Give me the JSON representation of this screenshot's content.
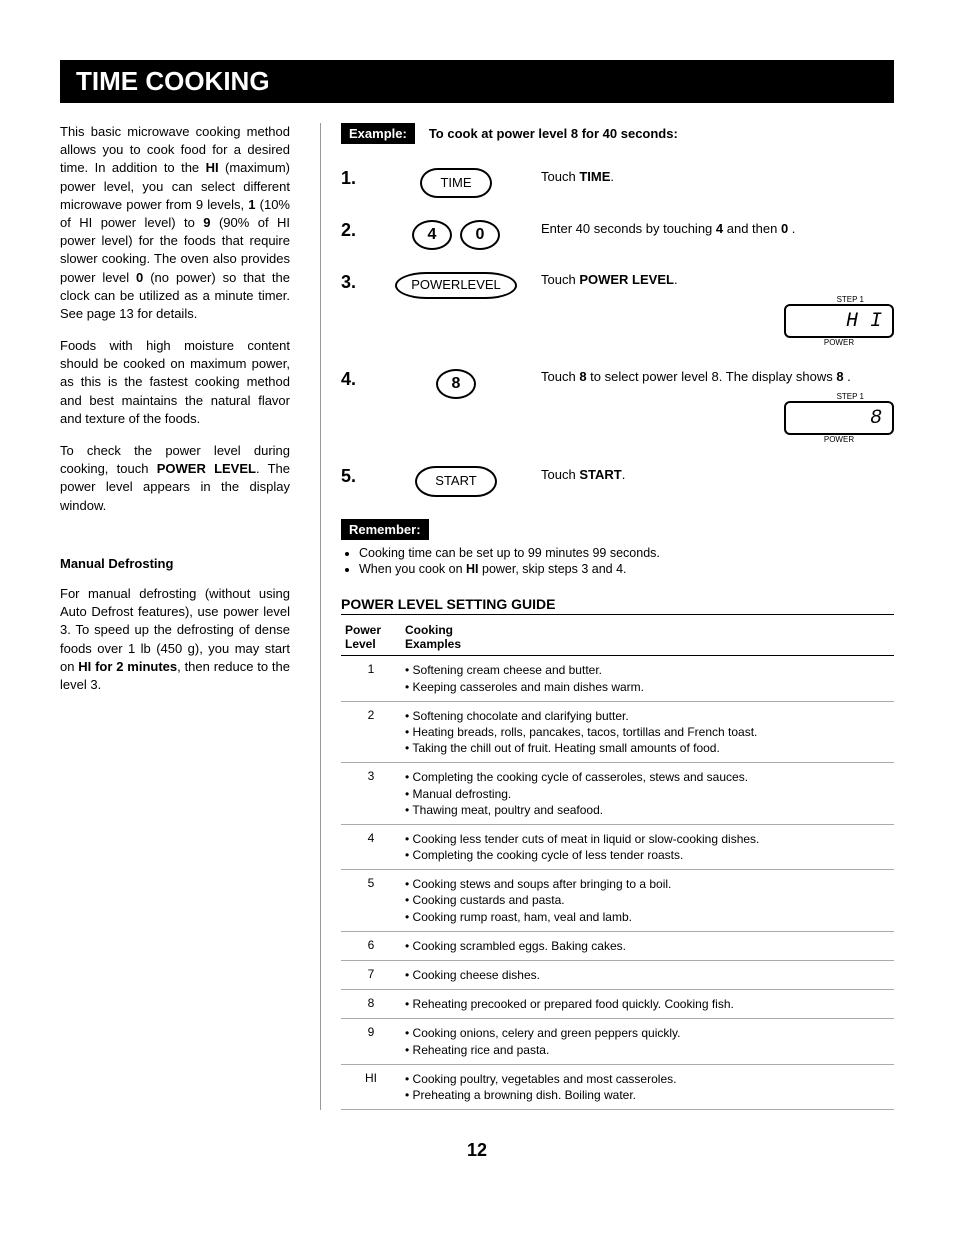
{
  "title": "TIME COOKING",
  "page_number": "12",
  "left": {
    "p1_a": "This basic microwave cooking method allows you to cook food for a desired time. In addition to the ",
    "p1_b": "HI",
    "p1_c": " (maximum) power level, you can select different microwave power from 9 levels, ",
    "p1_d": "1",
    "p1_e": " (10% of HI power level) to ",
    "p1_f": "9",
    "p1_g": " (90% of HI power level) for the foods that require slower cooking. The oven also provides power level ",
    "p1_h": "0",
    "p1_i": " (no power) so that the clock can be utilized as a minute timer. See page 13 for details.",
    "p2": "Foods with high moisture content should be cooked on maximum power, as this is the fastest cooking method and best maintains the natural flavor and texture of the foods.",
    "p3_a": "To check the power level during cooking, touch ",
    "p3_b": "POWER LEVEL",
    "p3_c": ". The power level appears in the display window.",
    "sub_head": "Manual Defrosting",
    "p4_a": "For manual defrosting (without using Auto Defrost features), use power level 3. To speed up the defrosting of dense foods over 1 lb (450 g), you may start on ",
    "p4_b": "HI for 2 minutes",
    "p4_c": ", then reduce to the level 3."
  },
  "example": {
    "label": "Example:",
    "text": "To cook at power level 8 for 40 seconds:",
    "steps": [
      {
        "num": "1.",
        "buttons": [
          "TIME"
        ],
        "desc_parts": [
          "Touch ",
          "TIME",
          "."
        ]
      },
      {
        "num": "2.",
        "round_buttons": [
          "4",
          "0"
        ],
        "desc_parts": [
          "Enter 40 seconds by touching ",
          "4",
          " and then ",
          "0",
          " ."
        ]
      },
      {
        "num": "3.",
        "buttons_multi": [
          "POWER",
          "LEVEL"
        ],
        "desc_parts": [
          "Touch ",
          "POWER LEVEL",
          "."
        ],
        "display": "H I",
        "display_top": "STEP 1",
        "display_caption": "POWER"
      },
      {
        "num": "4.",
        "round_buttons": [
          "8"
        ],
        "desc_parts": [
          "Touch ",
          "8",
          " to select power level 8. The display shows ",
          "8",
          " ."
        ],
        "display": "8",
        "display_top": "STEP 1",
        "display_caption": "POWER"
      },
      {
        "num": "5.",
        "buttons": [
          "START"
        ],
        "desc_parts": [
          "Touch ",
          "START",
          "."
        ]
      }
    ]
  },
  "remember": {
    "label": "Remember:",
    "items": [
      "Cooking time can be set up to 99 minutes 99 seconds.",
      "When you cook on HI power, skip steps 3 and 4."
    ],
    "item2_a": "When you cook on ",
    "item2_b": "HI",
    "item2_c": " power, skip steps 3 and 4."
  },
  "guide": {
    "heading": "POWER LEVEL SETTING GUIDE",
    "col1_a": "Power",
    "col1_b": "Level",
    "col2_a": "Cooking",
    "col2_b": "Examples",
    "rows": [
      {
        "level": "1",
        "examples": [
          "Softening cream cheese and butter.",
          "Keeping casseroles and main dishes warm."
        ]
      },
      {
        "level": "2",
        "examples": [
          "Softening chocolate and clarifying butter.",
          "Heating breads, rolls, pancakes, tacos, tortillas and French toast.",
          "Taking the chill out of fruit. Heating small amounts of food."
        ]
      },
      {
        "level": "3",
        "examples": [
          "Completing the cooking cycle of casseroles, stews and sauces.",
          "Manual defrosting.",
          "Thawing meat, poultry and seafood."
        ]
      },
      {
        "level": "4",
        "examples": [
          "Cooking less tender cuts of meat in liquid or slow-cooking dishes.",
          "Completing the cooking cycle of less tender roasts."
        ]
      },
      {
        "level": "5",
        "examples": [
          "Cooking stews and soups after bringing to a boil.",
          "Cooking custards and pasta.",
          "Cooking rump roast, ham, veal and lamb."
        ]
      },
      {
        "level": "6",
        "examples": [
          "Cooking scrambled eggs. Baking cakes."
        ]
      },
      {
        "level": "7",
        "examples": [
          "Cooking cheese dishes."
        ]
      },
      {
        "level": "8",
        "examples": [
          "Reheating precooked or prepared food quickly. Cooking fish."
        ]
      },
      {
        "level": "9",
        "examples": [
          "Cooking onions, celery and green peppers quickly.",
          "Reheating rice and pasta."
        ]
      },
      {
        "level": "HI",
        "examples": [
          "Cooking poultry, vegetables and most casseroles.",
          "Preheating a browning dish. Boiling water."
        ]
      }
    ]
  }
}
